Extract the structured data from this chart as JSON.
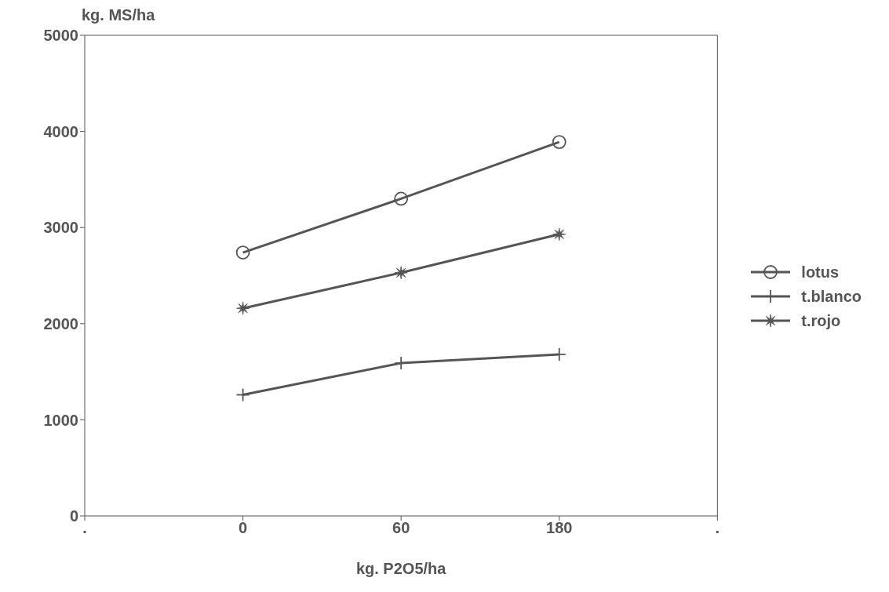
{
  "chart_data": {
    "type": "line",
    "ylabel": "kg. MS/ha",
    "xlabel": "kg. P2O5/ha",
    "categories": [
      ".",
      "0",
      "60",
      "180",
      "."
    ],
    "series": [
      {
        "name": "lotus",
        "color": "#555555",
        "marker": "circle",
        "values": [
          null,
          2740,
          3300,
          3890,
          null
        ]
      },
      {
        "name": "t.blanco",
        "color": "#555555",
        "marker": "cross",
        "values": [
          null,
          1260,
          1590,
          1680,
          null
        ]
      },
      {
        "name": "t.rojo",
        "color": "#555555",
        "marker": "star",
        "values": [
          null,
          2160,
          2530,
          2930,
          null
        ]
      }
    ],
    "ylim": [
      0,
      5000
    ],
    "yticks": [
      0,
      1000,
      2000,
      3000,
      4000,
      5000
    ],
    "grid": false,
    "legend": "right",
    "line_style": "solid"
  }
}
